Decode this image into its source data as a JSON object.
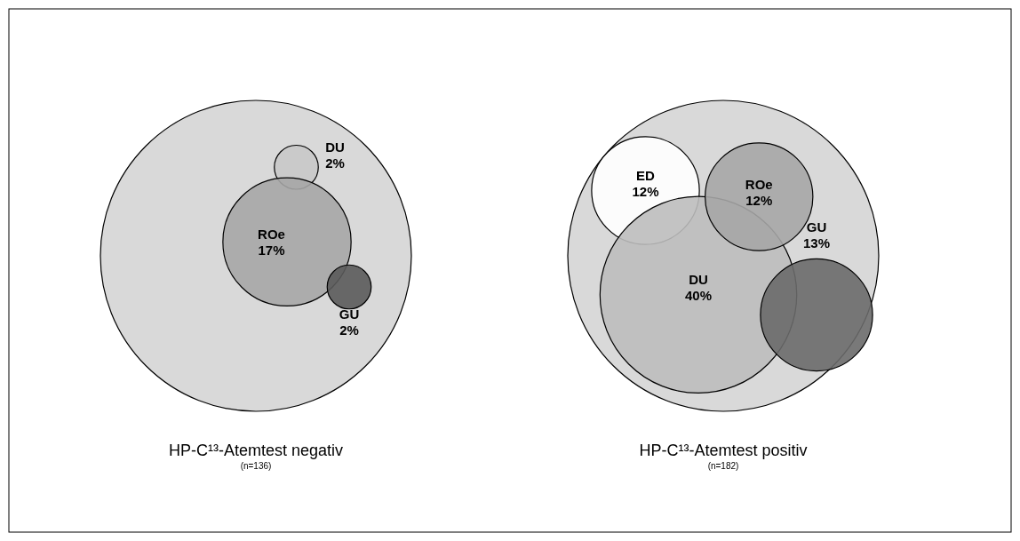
{
  "chart_data": [
    {
      "type": "other",
      "title": "HP-C¹³-Atemtest negativ",
      "subtitle": "(n=136)",
      "categories": [
        "DU",
        "ROe",
        "GU"
      ],
      "values": [
        2,
        17,
        2
      ],
      "value_labels": [
        "2%",
        "17%",
        "2%"
      ]
    },
    {
      "type": "other",
      "title": "HP-C¹³-Atemtest positiv",
      "subtitle": "(n=182)",
      "categories": [
        "ED",
        "DU",
        "ROe",
        "GU"
      ],
      "values": [
        12,
        40,
        12,
        13
      ],
      "value_labels": [
        "12%",
        "40%",
        "12%",
        "13%"
      ]
    }
  ]
}
